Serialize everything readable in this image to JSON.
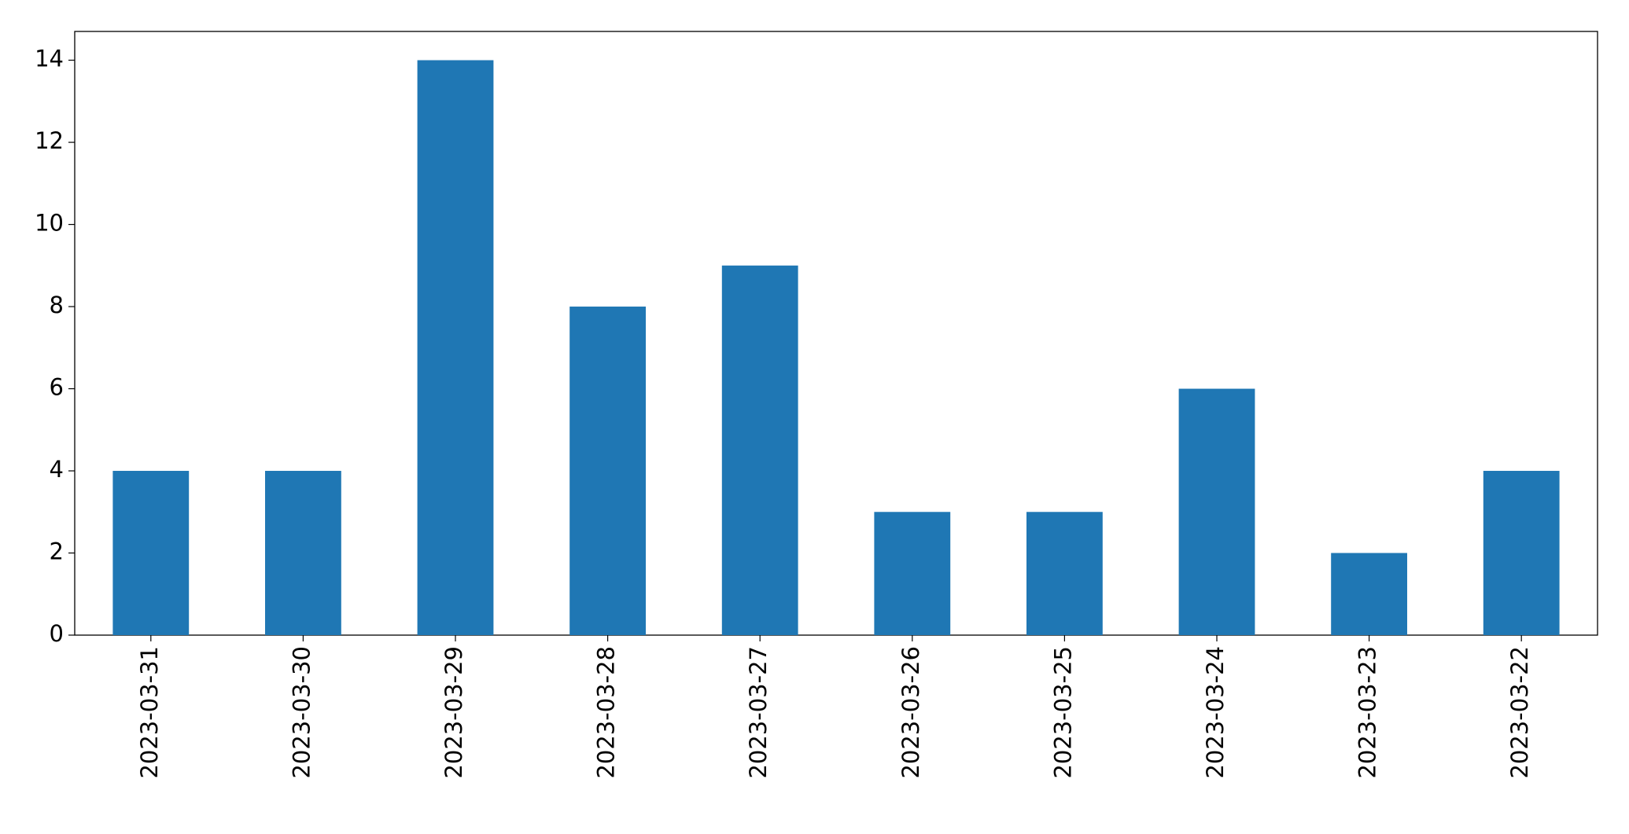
{
  "chart_data": {
    "type": "bar",
    "categories": [
      "2023-03-31",
      "2023-03-30",
      "2023-03-29",
      "2023-03-28",
      "2023-03-27",
      "2023-03-26",
      "2023-03-25",
      "2023-03-24",
      "2023-03-23",
      "2023-03-22"
    ],
    "values": [
      4,
      4,
      14,
      8,
      9,
      3,
      3,
      6,
      2,
      4
    ],
    "color": "#1f77b4",
    "ylim": [
      0,
      14.7
    ],
    "yticks": [
      0,
      2,
      4,
      6,
      8,
      10,
      12,
      14
    ],
    "grid": false
  }
}
